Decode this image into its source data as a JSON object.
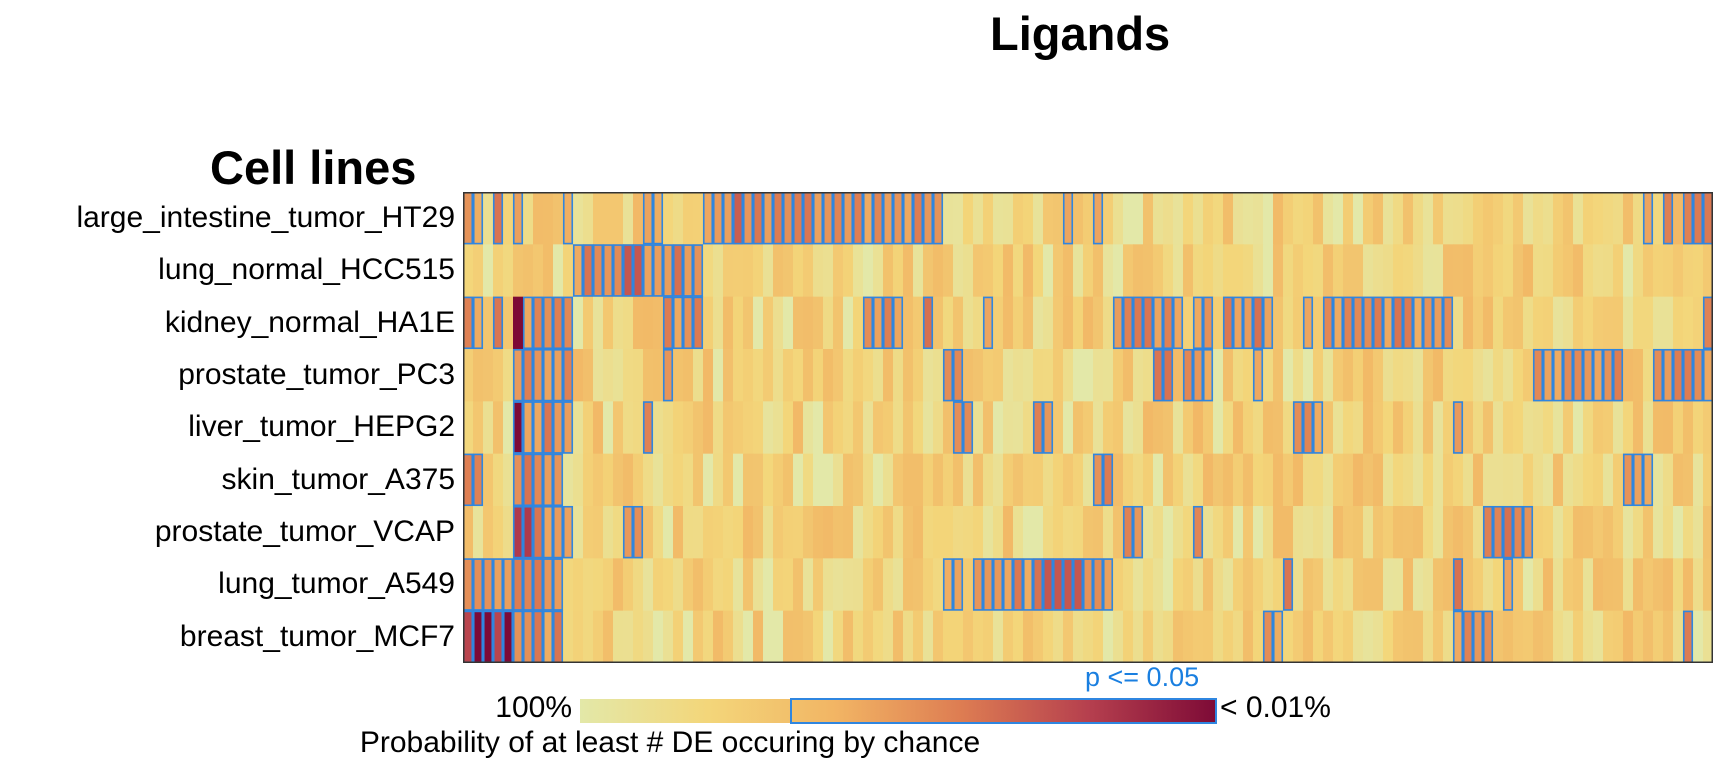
{
  "chart_data": {
    "type": "heatmap",
    "title": "Ligands",
    "row_axis_title": "Cell lines",
    "rows": [
      "large_intestine_tumor_HT29",
      "lung_normal_HCC515",
      "kidney_normal_HA1E",
      "prostate_tumor_PC3",
      "liver_tumor_HEPG2",
      "skin_tumor_A375",
      "prostate_tumor_VCAP",
      "lung_tumor_A549",
      "breast_tumor_MCF7"
    ],
    "n_columns": 125,
    "value_meaning": "Probability of at least # DE occuring by chance",
    "significance_threshold_label": "p <= 0.05",
    "significant_column_spans": [
      [
        [
          0,
          1
        ],
        [
          3,
          3
        ],
        [
          5,
          5
        ],
        [
          10,
          10
        ],
        [
          18,
          19
        ],
        [
          24,
          47
        ],
        [
          60,
          60
        ],
        [
          63,
          63
        ],
        [
          118,
          118
        ],
        [
          120,
          120
        ],
        [
          122,
          124
        ]
      ],
      [
        [
          11,
          23
        ]
      ],
      [
        [
          0,
          1
        ],
        [
          3,
          3
        ],
        [
          6,
          10
        ],
        [
          20,
          23
        ],
        [
          40,
          43
        ],
        [
          46,
          46
        ],
        [
          52,
          52
        ],
        [
          65,
          71
        ],
        [
          73,
          74
        ],
        [
          76,
          80
        ],
        [
          84,
          84
        ],
        [
          86,
          98
        ],
        [
          124,
          124
        ]
      ],
      [
        [
          5,
          10
        ],
        [
          20,
          20
        ],
        [
          48,
          49
        ],
        [
          69,
          70
        ],
        [
          72,
          74
        ],
        [
          79,
          79
        ],
        [
          107,
          115
        ],
        [
          119,
          124
        ]
      ],
      [
        [
          5,
          10
        ],
        [
          18,
          18
        ],
        [
          49,
          50
        ],
        [
          57,
          58
        ],
        [
          83,
          85
        ],
        [
          99,
          99
        ]
      ],
      [
        [
          0,
          1
        ],
        [
          5,
          9
        ],
        [
          63,
          64
        ],
        [
          116,
          118
        ]
      ],
      [
        [
          5,
          10
        ],
        [
          16,
          17
        ],
        [
          66,
          67
        ],
        [
          73,
          73
        ],
        [
          102,
          106
        ]
      ],
      [
        [
          0,
          9
        ],
        [
          48,
          49
        ],
        [
          51,
          64
        ],
        [
          82,
          82
        ],
        [
          99,
          99
        ],
        [
          104,
          104
        ]
      ],
      [
        [
          0,
          9
        ],
        [
          80,
          81
        ],
        [
          99,
          102
        ],
        [
          122,
          122
        ]
      ]
    ],
    "colorbar": {
      "min_label": "100%",
      "max_label": "< 0.01%",
      "colors": [
        "#e3e8a8",
        "#f3d67a",
        "#f2b564",
        "#dd7c52",
        "#b53f4e",
        "#7d0a36"
      ]
    }
  }
}
